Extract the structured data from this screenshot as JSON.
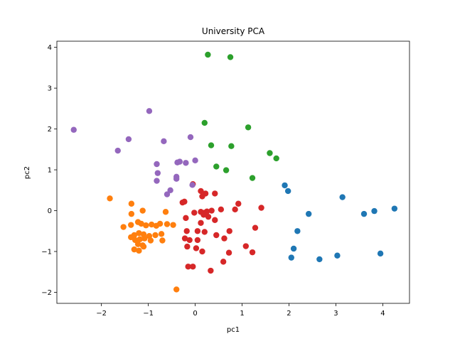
{
  "chart_data": {
    "type": "scatter",
    "title": "University PCA",
    "xlabel": "pc1",
    "ylabel": "pc2",
    "xlim": [
      -2.95,
      4.57
    ],
    "ylim": [
      -2.27,
      4.15
    ],
    "xticks": [
      -2,
      -1,
      0,
      1,
      2,
      3,
      4
    ],
    "yticks": [
      -2,
      -1,
      0,
      1,
      2,
      3,
      4
    ],
    "grid": false,
    "legend": "none",
    "series": [
      {
        "color": "#1f77b4",
        "points": [
          [
            1.91,
            0.62
          ],
          [
            1.98,
            0.48
          ],
          [
            3.14,
            0.33
          ],
          [
            4.25,
            0.05
          ],
          [
            3.82,
            -0.01
          ],
          [
            3.6,
            -0.08
          ],
          [
            2.42,
            -0.08
          ],
          [
            2.18,
            -0.5
          ],
          [
            2.1,
            -0.93
          ],
          [
            2.05,
            -1.15
          ],
          [
            2.65,
            -1.19
          ],
          [
            3.03,
            -1.1
          ],
          [
            3.95,
            -1.05
          ]
        ]
      },
      {
        "color": "#ff7f0e",
        "points": [
          [
            -1.82,
            0.3
          ],
          [
            -1.36,
            0.17
          ],
          [
            -1.36,
            -0.08
          ],
          [
            -1.12,
            0.0
          ],
          [
            -0.63,
            -0.03
          ],
          [
            -1.53,
            -0.4
          ],
          [
            -1.37,
            -0.35
          ],
          [
            -1.22,
            -0.28
          ],
          [
            -1.15,
            -0.32
          ],
          [
            -1.05,
            -0.36
          ],
          [
            -0.93,
            -0.34
          ],
          [
            -0.83,
            -0.37
          ],
          [
            -0.75,
            -0.32
          ],
          [
            -0.6,
            -0.33
          ],
          [
            -0.47,
            -0.35
          ],
          [
            -1.3,
            -0.6
          ],
          [
            -1.2,
            -0.55
          ],
          [
            -1.1,
            -0.58
          ],
          [
            -0.98,
            -0.62
          ],
          [
            -0.85,
            -0.6
          ],
          [
            -0.72,
            -0.57
          ],
          [
            -1.37,
            -0.65
          ],
          [
            -1.28,
            -0.72
          ],
          [
            -1.18,
            -0.7
          ],
          [
            -1.08,
            -0.68
          ],
          [
            -0.95,
            -0.73
          ],
          [
            -0.7,
            -0.73
          ],
          [
            -1.22,
            -0.82
          ],
          [
            -1.12,
            -0.85
          ],
          [
            -1.3,
            -0.95
          ],
          [
            -1.2,
            -0.98
          ],
          [
            -1.1,
            -0.88
          ],
          [
            -0.4,
            -1.93
          ]
        ]
      },
      {
        "color": "#2ca02c",
        "points": [
          [
            0.27,
            3.82
          ],
          [
            0.75,
            3.76
          ],
          [
            0.2,
            2.15
          ],
          [
            1.13,
            2.04
          ],
          [
            0.34,
            1.6
          ],
          [
            0.77,
            1.58
          ],
          [
            1.59,
            1.41
          ],
          [
            1.73,
            1.28
          ],
          [
            0.45,
            1.08
          ],
          [
            0.66,
            0.99
          ],
          [
            1.22,
            0.8
          ]
        ]
      },
      {
        "color": "#d62728",
        "points": [
          [
            -0.05,
            0.65
          ],
          [
            0.12,
            0.48
          ],
          [
            0.22,
            0.42
          ],
          [
            0.42,
            0.42
          ],
          [
            0.15,
            0.35
          ],
          [
            0.92,
            0.17
          ],
          [
            -0.27,
            0.2
          ],
          [
            -0.23,
            0.22
          ],
          [
            1.41,
            0.07
          ],
          [
            0.35,
            0.0
          ],
          [
            0.55,
            0.03
          ],
          [
            0.85,
            0.03
          ],
          [
            -0.02,
            -0.05
          ],
          [
            0.12,
            -0.03
          ],
          [
            0.2,
            -0.05
          ],
          [
            0.25,
            -0.02
          ],
          [
            0.18,
            -0.1
          ],
          [
            0.28,
            -0.15
          ],
          [
            -0.2,
            -0.18
          ],
          [
            0.12,
            -0.3
          ],
          [
            0.42,
            -0.23
          ],
          [
            1.28,
            -0.42
          ],
          [
            -0.18,
            -0.5
          ],
          [
            0.05,
            -0.5
          ],
          [
            0.73,
            -0.5
          ],
          [
            0.2,
            -0.52
          ],
          [
            0.45,
            -0.6
          ],
          [
            -0.22,
            -0.68
          ],
          [
            0.62,
            -0.68
          ],
          [
            -0.12,
            -0.72
          ],
          [
            0.05,
            -0.72
          ],
          [
            -0.17,
            -0.88
          ],
          [
            0.02,
            -0.92
          ],
          [
            1.08,
            -0.87
          ],
          [
            0.15,
            -1.0
          ],
          [
            0.72,
            -1.03
          ],
          [
            1.22,
            -1.02
          ],
          [
            0.6,
            -1.25
          ],
          [
            -0.15,
            -1.37
          ],
          [
            -0.05,
            -1.37
          ],
          [
            0.33,
            -1.47
          ]
        ]
      },
      {
        "color": "#9467bd",
        "points": [
          [
            -2.59,
            1.98
          ],
          [
            -0.98,
            2.44
          ],
          [
            -1.42,
            1.75
          ],
          [
            -1.65,
            1.47
          ],
          [
            -0.67,
            1.7
          ],
          [
            -0.1,
            1.8
          ],
          [
            0.0,
            1.23
          ],
          [
            -0.38,
            1.18
          ],
          [
            -0.33,
            1.2
          ],
          [
            -0.2,
            1.17
          ],
          [
            -0.82,
            1.14
          ],
          [
            -0.8,
            0.92
          ],
          [
            -0.4,
            0.83
          ],
          [
            -0.4,
            0.78
          ],
          [
            -0.82,
            0.73
          ],
          [
            -0.06,
            0.63
          ],
          [
            -0.53,
            0.5
          ],
          [
            -0.6,
            0.4
          ]
        ]
      }
    ]
  }
}
